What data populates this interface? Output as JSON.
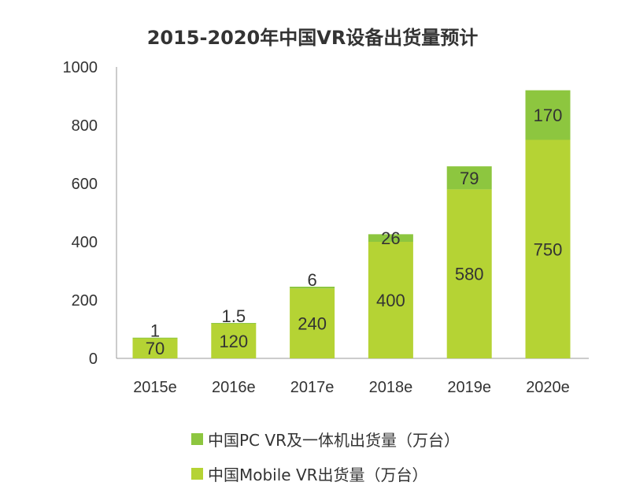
{
  "chart_data": {
    "type": "bar",
    "stacked": true,
    "title": "2015-2020年中国VR设备出货量预计",
    "categories": [
      "2015e",
      "2016e",
      "2017e",
      "2018e",
      "2019e",
      "2020e"
    ],
    "series": [
      {
        "name": "中国Mobile VR出货量（万台）",
        "values": [
          70,
          120,
          240,
          400,
          580,
          750
        ],
        "labels": [
          "70",
          "120",
          "240",
          "400",
          "580",
          "750"
        ],
        "color": "#b5d334"
      },
      {
        "name": "中国PC VR及一体机出货量（万台）",
        "values": [
          1,
          1.5,
          6,
          26,
          79,
          170
        ],
        "labels": [
          "1",
          "1.5",
          "6",
          "26",
          "79",
          "170"
        ],
        "color": "#8dc63f"
      }
    ],
    "yticks": [
      "0",
      "200",
      "400",
      "600",
      "800",
      "1000"
    ],
    "ylim": [
      0,
      1000
    ],
    "grid": false,
    "legend_placement": "bottom"
  }
}
